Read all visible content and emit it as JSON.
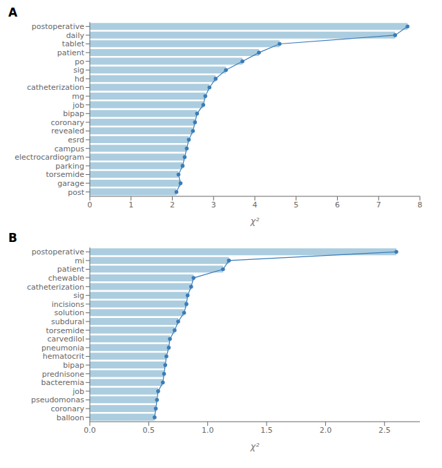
{
  "chart_data": [
    {
      "type": "bar",
      "orientation": "horizontal",
      "title": "A",
      "xlabel": "χ²",
      "categories": [
        "postoperative",
        "daily",
        "tablet",
        "patient",
        "po",
        "sig",
        "hd",
        "catheterization",
        "mg",
        "job",
        "bipap",
        "coronary",
        "revealed",
        "esrd",
        "campus",
        "electrocardiogram",
        "parking",
        "torsemide",
        "garage",
        "post"
      ],
      "series": [
        {
          "type": "bar",
          "color": "#8fbcd4",
          "values": [
            7.7,
            7.4,
            4.6,
            4.1,
            3.7,
            3.3,
            3.05,
            2.9,
            2.8,
            2.75,
            2.6,
            2.55,
            2.5,
            2.4,
            2.35,
            2.3,
            2.25,
            2.15,
            2.2,
            2.1
          ]
        },
        {
          "type": "line",
          "color": "#3a7cb8",
          "marker": "circle",
          "line_style": "solid",
          "values": [
            7.7,
            7.4,
            4.6,
            4.1,
            3.7,
            3.3,
            3.05,
            2.9,
            2.8,
            2.75,
            2.6,
            2.55,
            2.5,
            2.4,
            2.35,
            2.3,
            2.25,
            2.15,
            2.2,
            2.1
          ]
        }
      ],
      "xlim": [
        0,
        8
      ],
      "xticks": [
        0,
        1,
        2,
        3,
        4,
        5,
        6,
        7,
        8
      ],
      "grid": false
    },
    {
      "type": "bar",
      "orientation": "horizontal",
      "title": "B",
      "xlabel": "χ²",
      "categories": [
        "postoperative",
        "mi",
        "patient",
        "chewable",
        "catheterization",
        "sig",
        "incisions",
        "solution",
        "subdural",
        "torsemide",
        "carvedilol",
        "pneumonia",
        "hematocrit",
        "bipap",
        "prednisone",
        "bacteremia",
        "job",
        "pseudomonas",
        "coronary",
        "balloon"
      ],
      "series": [
        {
          "type": "bar",
          "color": "#8fbcd4",
          "values": [
            2.6,
            1.18,
            1.13,
            0.88,
            0.86,
            0.83,
            0.82,
            0.8,
            0.75,
            0.72,
            0.68,
            0.67,
            0.65,
            0.64,
            0.63,
            0.62,
            0.58,
            0.57,
            0.56,
            0.55
          ]
        },
        {
          "type": "line",
          "color": "#3a7cb8",
          "marker": "circle",
          "line_style": "solid",
          "values": [
            2.6,
            1.18,
            1.13,
            0.88,
            0.86,
            0.83,
            0.82,
            0.8,
            0.75,
            0.72,
            0.68,
            0.67,
            0.65,
            0.64,
            0.63,
            0.62,
            0.58,
            0.57,
            0.56,
            0.55
          ]
        }
      ],
      "xlim": [
        0.0,
        2.8
      ],
      "xticks": [
        {
          "value": 0,
          "label": "0.0"
        },
        0.5,
        {
          "value": 1,
          "label": "1.0"
        },
        1.5,
        {
          "value": 2,
          "label": "2.0"
        },
        2.5
      ],
      "grid": false
    }
  ]
}
